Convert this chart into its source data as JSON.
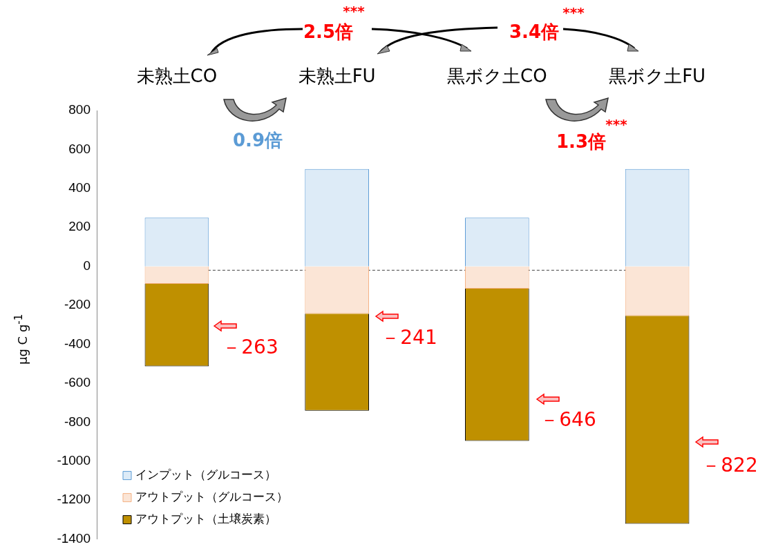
{
  "chart_data": {
    "type": "bar",
    "stacked": true,
    "categories": [
      "未熟土CO",
      "未熟土FU",
      "黒ボク土CO",
      "黒ボク土FU"
    ],
    "series": [
      {
        "name": "インプット（グルコース）",
        "color": "#ddebf7",
        "values": [
          250,
          500,
          250,
          500
        ]
      },
      {
        "name": "アウトプット（グルコース）",
        "color": "#fbe5d6",
        "values": [
          -90,
          -243,
          -115,
          -254
        ]
      },
      {
        "name": "アウトプット（土壌炭素）",
        "color": "#bf9000",
        "values": [
          -423,
          -498,
          -781,
          -1068
        ]
      }
    ],
    "ylabel": "μg C g$^{-1}$",
    "ylim": [
      -1400,
      800
    ],
    "yticks": [
      -1400,
      -1200,
      -1000,
      -800,
      -600,
      -400,
      -200,
      0,
      200,
      400,
      600,
      800
    ],
    "grid": false,
    "legend": "bottom left",
    "ref_lines": [
      {
        "axis": "y",
        "value": -20,
        "line_style": "dashed",
        "color": "#404040"
      }
    ],
    "annotations": [
      "2.5倍",
      "***",
      "3.4倍",
      "***",
      "0.9倍",
      "1.3倍",
      "***",
      "－263",
      "－241",
      "－646",
      "－822"
    ]
  }
}
